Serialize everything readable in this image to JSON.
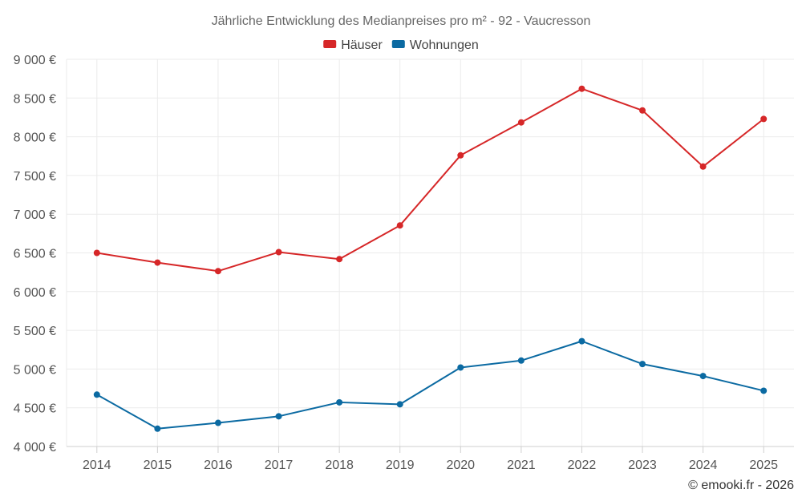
{
  "chart_data": {
    "type": "line",
    "title": "Jährliche Entwicklung des Medianpreises pro m² - 92 - Vaucresson",
    "categories": [
      "2014",
      "2015",
      "2016",
      "2017",
      "2018",
      "2019",
      "2020",
      "2021",
      "2022",
      "2023",
      "2024",
      "2025"
    ],
    "series": [
      {
        "name": "Häuser",
        "color": "#d62728",
        "values": [
          6500,
          6375,
          6265,
          6510,
          6420,
          6855,
          7760,
          8185,
          8620,
          8340,
          7615,
          8230
        ]
      },
      {
        "name": "Wohnungen",
        "color": "#0b6aa2",
        "values": [
          4670,
          4230,
          4305,
          4390,
          4570,
          4545,
          5020,
          5110,
          5360,
          5065,
          4910,
          4720
        ]
      }
    ],
    "ylim": [
      4000,
      9000
    ],
    "ytick_values": [
      4000,
      4500,
      5000,
      5500,
      6000,
      6500,
      7000,
      7500,
      8000,
      8500,
      9000
    ],
    "ytick_labels": [
      "4 000 €",
      "4 500 €",
      "5 000 €",
      "5 500 €",
      "6 000 €",
      "6 500 €",
      "7 000 €",
      "7 500 €",
      "8 000 €",
      "8 500 €",
      "9 000 €"
    ],
    "xlabel": "",
    "ylabel": "",
    "grid": true,
    "legend": "top-center"
  },
  "credit": "© emooki.fr - 2026"
}
